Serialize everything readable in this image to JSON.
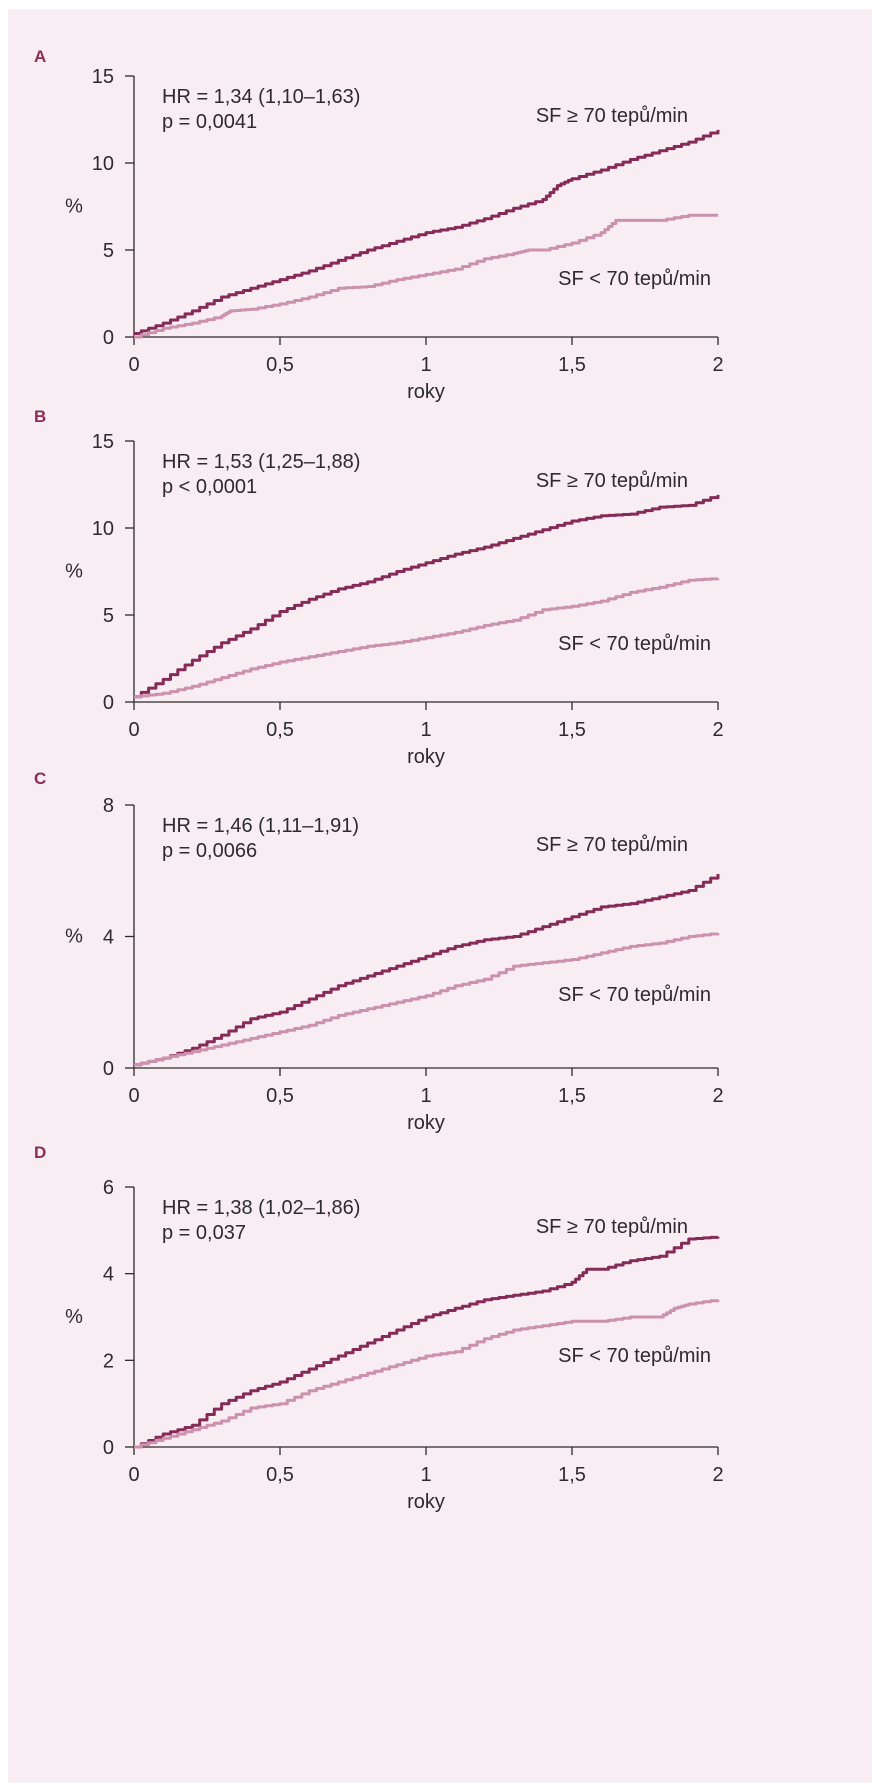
{
  "colors": {
    "background": "#f7edf2",
    "high_hr": "#862b57",
    "low_hr": "#cc92ad",
    "axis": "#2e2b2d",
    "panel_letter": "#8c2d58"
  },
  "chart_data": [
    {
      "panel": "A",
      "type": "line",
      "xlabel": "roky",
      "ylabel": "%",
      "xlim": [
        0,
        2
      ],
      "ylim": [
        0,
        15
      ],
      "xticks": [
        "0",
        "0,5",
        "1",
        "1,5",
        "2"
      ],
      "yticks": [
        "0",
        "5",
        "10",
        "15"
      ],
      "ytick_values": [
        0,
        5,
        10,
        15
      ],
      "hr_text": "HR = 1,34 (1,10–1,63)",
      "p_text": "p = 0,0041",
      "series": [
        {
          "name": "SF ≥ 70 tepů/min",
          "x": [
            0,
            0.1,
            0.2,
            0.3,
            0.4,
            0.5,
            0.6,
            0.7,
            0.8,
            0.9,
            1.0,
            1.1,
            1.2,
            1.3,
            1.4,
            1.45,
            1.5,
            1.6,
            1.7,
            1.8,
            1.9,
            2.0
          ],
          "y": [
            0.2,
            0.8,
            1.5,
            2.3,
            2.8,
            3.3,
            3.8,
            4.4,
            5.0,
            5.5,
            6.0,
            6.3,
            6.8,
            7.4,
            7.9,
            8.7,
            9.1,
            9.6,
            10.2,
            10.7,
            11.2,
            11.9
          ]
        },
        {
          "name": "SF < 70 tepů/min",
          "x": [
            0,
            0.1,
            0.2,
            0.3,
            0.33,
            0.4,
            0.5,
            0.6,
            0.7,
            0.8,
            0.9,
            1.0,
            1.1,
            1.2,
            1.3,
            1.35,
            1.4,
            1.5,
            1.6,
            1.65,
            1.7,
            1.8,
            1.9,
            2.0
          ],
          "y": [
            0.0,
            0.5,
            0.8,
            1.2,
            1.5,
            1.6,
            1.9,
            2.3,
            2.8,
            2.9,
            3.3,
            3.6,
            3.9,
            4.5,
            4.8,
            5.0,
            5.0,
            5.4,
            6.0,
            6.7,
            6.7,
            6.7,
            7.0,
            7.0
          ]
        }
      ]
    },
    {
      "panel": "B",
      "type": "line",
      "xlabel": "roky",
      "ylabel": "%",
      "xlim": [
        0,
        2
      ],
      "ylim": [
        0,
        15
      ],
      "xticks": [
        "0",
        "0,5",
        "1",
        "1,5",
        "2"
      ],
      "yticks": [
        "0",
        "5",
        "10",
        "15"
      ],
      "ytick_values": [
        0,
        5,
        10,
        15
      ],
      "hr_text": "HR = 1,53 (1,25–1,88)",
      "p_text": "p < 0,0001",
      "series": [
        {
          "name": "SF ≥ 70 tepů/min",
          "x": [
            0,
            0.1,
            0.2,
            0.3,
            0.4,
            0.5,
            0.6,
            0.7,
            0.8,
            0.9,
            1.0,
            1.1,
            1.2,
            1.3,
            1.4,
            1.5,
            1.6,
            1.7,
            1.8,
            1.9,
            2.0
          ],
          "y": [
            0.3,
            1.3,
            2.4,
            3.4,
            4.2,
            5.2,
            5.9,
            6.5,
            6.9,
            7.5,
            8.0,
            8.5,
            8.9,
            9.4,
            9.9,
            10.4,
            10.7,
            10.8,
            11.2,
            11.3,
            11.9
          ]
        },
        {
          "name": "SF < 70 tepů/min",
          "x": [
            0,
            0.1,
            0.2,
            0.3,
            0.4,
            0.5,
            0.6,
            0.7,
            0.8,
            0.9,
            1.0,
            1.1,
            1.2,
            1.3,
            1.4,
            1.5,
            1.6,
            1.7,
            1.8,
            1.9,
            2.0
          ],
          "y": [
            0.3,
            0.5,
            0.9,
            1.4,
            1.9,
            2.3,
            2.6,
            2.9,
            3.2,
            3.4,
            3.7,
            4.0,
            4.4,
            4.7,
            5.3,
            5.5,
            5.8,
            6.3,
            6.6,
            7.0,
            7.1
          ]
        }
      ]
    },
    {
      "panel": "C",
      "type": "line",
      "xlabel": "roky",
      "ylabel": "%",
      "xlim": [
        0,
        2
      ],
      "ylim": [
        0,
        8
      ],
      "xticks": [
        "0",
        "0,5",
        "1",
        "1,5",
        "2"
      ],
      "yticks": [
        "0",
        "4",
        "8"
      ],
      "ytick_values": [
        0,
        4,
        8
      ],
      "hr_text": "HR = 1,46 (1,11–1,91)",
      "p_text": "p = 0,0066",
      "series": [
        {
          "name": "SF ≥ 70 tepů/min",
          "x": [
            0,
            0.1,
            0.2,
            0.3,
            0.4,
            0.5,
            0.6,
            0.7,
            0.8,
            0.9,
            1.0,
            1.1,
            1.2,
            1.3,
            1.4,
            1.5,
            1.6,
            1.7,
            1.8,
            1.9,
            2.0
          ],
          "y": [
            0.1,
            0.3,
            0.6,
            1.0,
            1.5,
            1.7,
            2.1,
            2.5,
            2.8,
            3.1,
            3.4,
            3.7,
            3.9,
            4.0,
            4.3,
            4.6,
            4.9,
            5.0,
            5.2,
            5.4,
            5.9
          ]
        },
        {
          "name": "SF < 70 tepů/min",
          "x": [
            0,
            0.1,
            0.2,
            0.3,
            0.4,
            0.5,
            0.6,
            0.7,
            0.8,
            0.9,
            1.0,
            1.1,
            1.2,
            1.3,
            1.4,
            1.5,
            1.6,
            1.7,
            1.8,
            1.9,
            2.0
          ],
          "y": [
            0.1,
            0.3,
            0.5,
            0.7,
            0.9,
            1.1,
            1.3,
            1.6,
            1.8,
            2.0,
            2.2,
            2.5,
            2.7,
            3.1,
            3.2,
            3.3,
            3.5,
            3.7,
            3.8,
            4.0,
            4.1
          ]
        }
      ]
    },
    {
      "panel": "D",
      "type": "line",
      "xlabel": "roky",
      "ylabel": "%",
      "xlim": [
        0,
        2
      ],
      "ylim": [
        0,
        6
      ],
      "xticks": [
        "0",
        "0,5",
        "1",
        "1,5",
        "2"
      ],
      "yticks": [
        "0",
        "2",
        "4",
        "6"
      ],
      "ytick_values": [
        0,
        2,
        4,
        6
      ],
      "hr_text": "HR = 1,38 (1,02–1,86)",
      "p_text": "p = 0,037",
      "series": [
        {
          "name": "SF ≥ 70 tepů/min",
          "x": [
            0,
            0.1,
            0.2,
            0.3,
            0.4,
            0.5,
            0.6,
            0.7,
            0.8,
            0.9,
            1.0,
            1.1,
            1.2,
            1.3,
            1.4,
            1.5,
            1.55,
            1.6,
            1.7,
            1.8,
            1.9,
            2.0
          ],
          "y": [
            0.0,
            0.3,
            0.5,
            1.0,
            1.3,
            1.5,
            1.8,
            2.1,
            2.4,
            2.7,
            3.0,
            3.2,
            3.4,
            3.5,
            3.6,
            3.8,
            4.1,
            4.1,
            4.3,
            4.4,
            4.8,
            4.85
          ]
        },
        {
          "name": "SF < 70 tepů/min",
          "x": [
            0,
            0.1,
            0.2,
            0.3,
            0.4,
            0.5,
            0.6,
            0.7,
            0.8,
            0.9,
            1.0,
            1.1,
            1.2,
            1.3,
            1.4,
            1.5,
            1.6,
            1.7,
            1.8,
            1.85,
            1.9,
            2.0
          ],
          "y": [
            0.0,
            0.2,
            0.4,
            0.6,
            0.9,
            1.0,
            1.3,
            1.5,
            1.7,
            1.9,
            2.1,
            2.2,
            2.5,
            2.7,
            2.8,
            2.9,
            2.9,
            3.0,
            3.0,
            3.2,
            3.3,
            3.4
          ]
        }
      ]
    }
  ]
}
